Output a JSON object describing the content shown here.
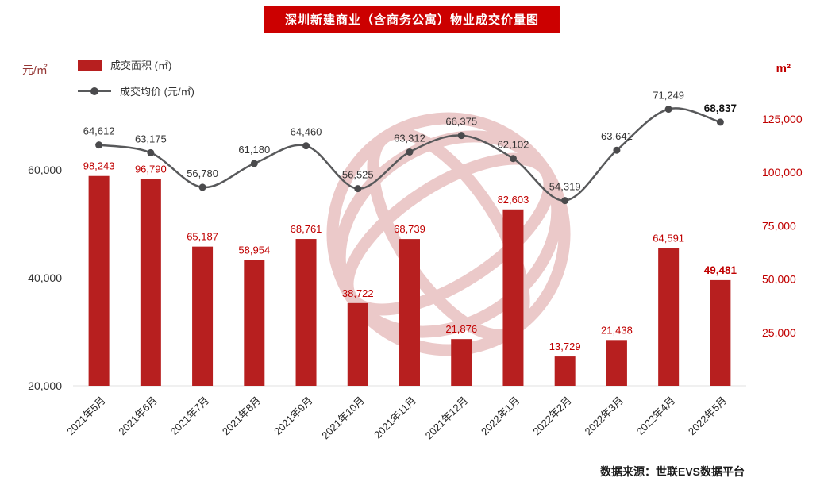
{
  "title": "深圳新建商业（含商务公寓）物业成交价量图",
  "footer": "数据来源：世联EVS数据平台",
  "legend": [
    {
      "label": "成交面积 (㎡)",
      "marker": "bar-swatch"
    },
    {
      "label": "成交均价 (元/㎡)",
      "marker": "line-dot"
    }
  ],
  "colors": {
    "bar": "#b71f1f",
    "bar_label": "#c00000",
    "line": "#58595b",
    "line_marker": "#4a4a4c",
    "title_bg": "#cc0000",
    "axis_right": "#c00000",
    "axis_left_text": "#333333",
    "unit_left": "#953735",
    "watermark": "#d89595"
  },
  "chart_data": {
    "type": "bar+line",
    "title": "深圳新建商业（含商务公寓）物业成交价量图",
    "categories": [
      "2021年5月",
      "2021年6月",
      "2021年7月",
      "2021年8月",
      "2021年9月",
      "2021年10月",
      "2021年11月",
      "2021年12月",
      "2022年1月",
      "2022年2月",
      "2022年3月",
      "2022年4月",
      "2022年5月"
    ],
    "series": [
      {
        "name": "成交面积 (㎡)",
        "type": "bar",
        "axis": "right",
        "values": [
          98243,
          96790,
          65187,
          58954,
          68761,
          38722,
          68739,
          21876,
          82603,
          13729,
          21438,
          64591,
          49481
        ]
      },
      {
        "name": "成交均价 (元/㎡)",
        "type": "line",
        "axis": "left",
        "values": [
          64612,
          63175,
          56780,
          61180,
          64460,
          56525,
          63312,
          66375,
          62102,
          54319,
          63641,
          71249,
          68837
        ]
      }
    ],
    "left_axis": {
      "label": "元/㎡",
      "min": 20000,
      "max": 74000,
      "ticks": [
        20000,
        40000,
        60000
      ]
    },
    "right_axis": {
      "label": "m²",
      "min": 0,
      "max": 135000,
      "ticks": [
        25000,
        50000,
        75000,
        100000,
        125000
      ]
    },
    "grid": false,
    "legend_position": "top-left",
    "watermark": "world-union-globe-logo"
  }
}
